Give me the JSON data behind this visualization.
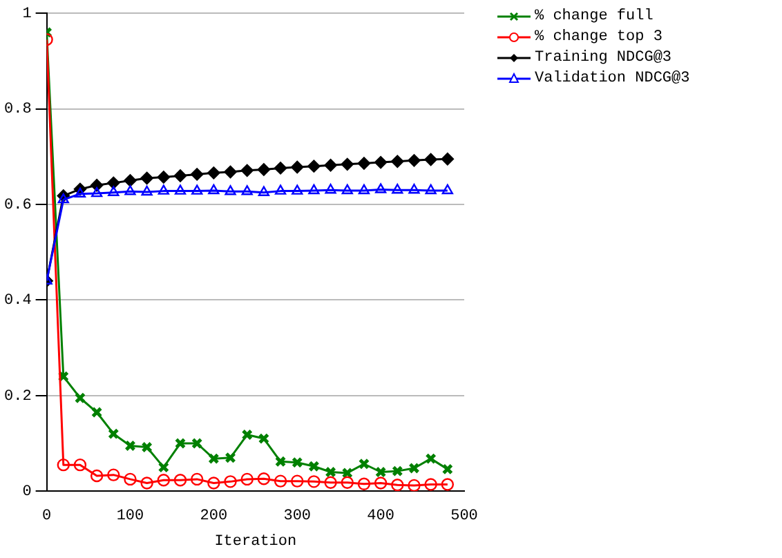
{
  "chart_data": {
    "type": "line",
    "xlabel": "Iteration",
    "x": [
      0,
      20,
      40,
      60,
      80,
      100,
      120,
      140,
      160,
      180,
      200,
      220,
      240,
      260,
      280,
      300,
      320,
      340,
      360,
      380,
      400,
      420,
      440,
      460,
      480
    ],
    "series": [
      {
        "name": "% change full",
        "color": "#008000",
        "marker": "cross",
        "values": [
          0.96,
          0.24,
          0.195,
          0.165,
          0.12,
          0.095,
          0.092,
          0.05,
          0.1,
          0.1,
          0.068,
          0.07,
          0.118,
          0.11,
          0.062,
          0.06,
          0.052,
          0.04,
          0.038,
          0.057,
          0.04,
          0.042,
          0.048,
          0.068,
          0.046
        ]
      },
      {
        "name": "% change top 3",
        "color": "#ff0000",
        "marker": "circle",
        "values": [
          0.945,
          0.055,
          0.055,
          0.032,
          0.034,
          0.025,
          0.017,
          0.023,
          0.023,
          0.025,
          0.017,
          0.02,
          0.025,
          0.026,
          0.021,
          0.021,
          0.02,
          0.018,
          0.018,
          0.015,
          0.017,
          0.013,
          0.012,
          0.014,
          0.014
        ]
      },
      {
        "name": "Training NDCG@3",
        "color": "#000000",
        "marker": "diamond",
        "values": [
          0.44,
          0.618,
          0.632,
          0.64,
          0.645,
          0.65,
          0.655,
          0.657,
          0.66,
          0.663,
          0.666,
          0.668,
          0.671,
          0.673,
          0.676,
          0.678,
          0.68,
          0.682,
          0.684,
          0.686,
          0.688,
          0.69,
          0.692,
          0.694,
          0.695
        ]
      },
      {
        "name": "Validation NDCG@3",
        "color": "#0000ff",
        "marker": "triangle",
        "values": [
          0.44,
          0.61,
          0.622,
          0.623,
          0.625,
          0.627,
          0.626,
          0.628,
          0.628,
          0.628,
          0.629,
          0.627,
          0.627,
          0.625,
          0.628,
          0.628,
          0.629,
          0.63,
          0.629,
          0.629,
          0.631,
          0.63,
          0.63,
          0.629,
          0.629
        ]
      }
    ],
    "xlim": [
      0,
      500
    ],
    "xticks": [
      0,
      100,
      200,
      300,
      400,
      500
    ],
    "ylim": [
      0,
      1
    ],
    "yticks": [
      0,
      0.2,
      0.4,
      0.6,
      0.8,
      1
    ],
    "grid": "y",
    "legend": "top right",
    "line_style": "solid"
  }
}
